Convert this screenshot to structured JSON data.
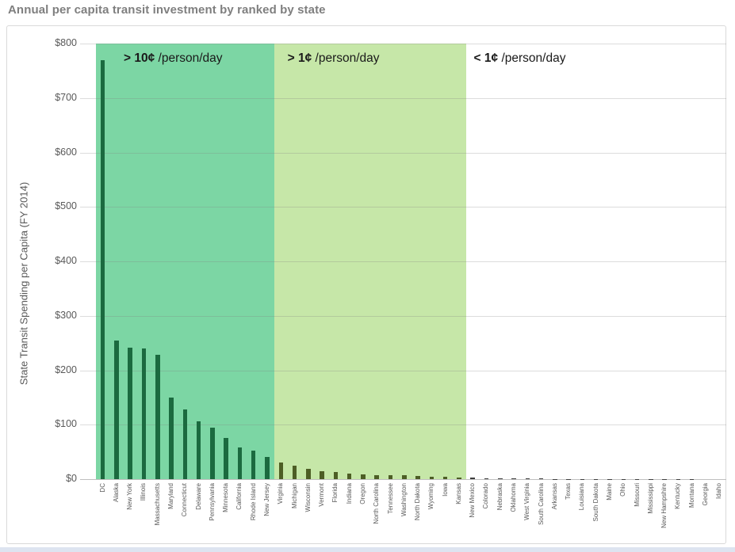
{
  "page": {
    "title": "Annual per capita transit investment by ranked by state"
  },
  "chart_data": {
    "type": "bar",
    "title": "Annual per capita transit investment by ranked by state",
    "xlabel": "",
    "ylabel": "State Transit Spending per Capita (FY 2014)",
    "ylim": [
      0,
      800
    ],
    "ytick_prefix": "$",
    "yticks": [
      0,
      100,
      200,
      300,
      400,
      500,
      600,
      700,
      800
    ],
    "grid": true,
    "legend": "none",
    "categories": [
      "DC",
      "Alaska",
      "New York",
      "Illinois",
      "Massachusetts",
      "Maryland",
      "Connecticut",
      "Delaware",
      "Pennsylvania",
      "Minnesota",
      "California",
      "Rhode Island",
      "New Jersey",
      "Virginia",
      "Michigan",
      "Wisconsin",
      "Vermont",
      "Florida",
      "Indiana",
      "Oregon",
      "North Carolina",
      "Tennessee",
      "Washington",
      "North Dakota",
      "Wyoming",
      "Iowa",
      "Kansas",
      "New Mexico",
      "Colorado",
      "Nebraska",
      "Oklahoma",
      "West Virginia",
      "South Carolina",
      "Arkansas",
      "Texas",
      "Louisiana",
      "South Dakota",
      "Maine",
      "Ohio",
      "Missouri",
      "Mississippi",
      "New Hampshire",
      "Kentucky",
      "Montana",
      "Georgia",
      "Idaho"
    ],
    "values": [
      770,
      255,
      242,
      240,
      228,
      150,
      128,
      106,
      95,
      75,
      58,
      52,
      41,
      30,
      25,
      19,
      14,
      13,
      10,
      9,
      8,
      7.5,
      7,
      6.5,
      5,
      4,
      3.5,
      2.5,
      2,
      1.8,
      1,
      0.9,
      0.8,
      0.7,
      0.6,
      0.5,
      0.5,
      0.4,
      0.4,
      0.3,
      0.3,
      0.2,
      0.2,
      0.2,
      0.1,
      0.1
    ],
    "zones": [
      {
        "label_bold": "> 10¢",
        "label_rest": "/person/day",
        "state_count": 13,
        "fill": "#7cd6a4",
        "bar_color": "#1b6a3f"
      },
      {
        "label_bold": "> 1¢",
        "label_rest": "/person/day",
        "state_count": 14,
        "fill": "#c6e7a8",
        "bar_color": "#4d5e25"
      },
      {
        "label_bold": "< 1¢",
        "label_rest": "/person/day",
        "state_count": 19,
        "fill": "transparent",
        "bar_color": "#3d3d3d"
      }
    ],
    "colors": {
      "title_text": "#7f7f7f",
      "axis_text": "#595959",
      "gridline": "#d9d9d9",
      "frame_border": "#d9d9d9"
    }
  }
}
